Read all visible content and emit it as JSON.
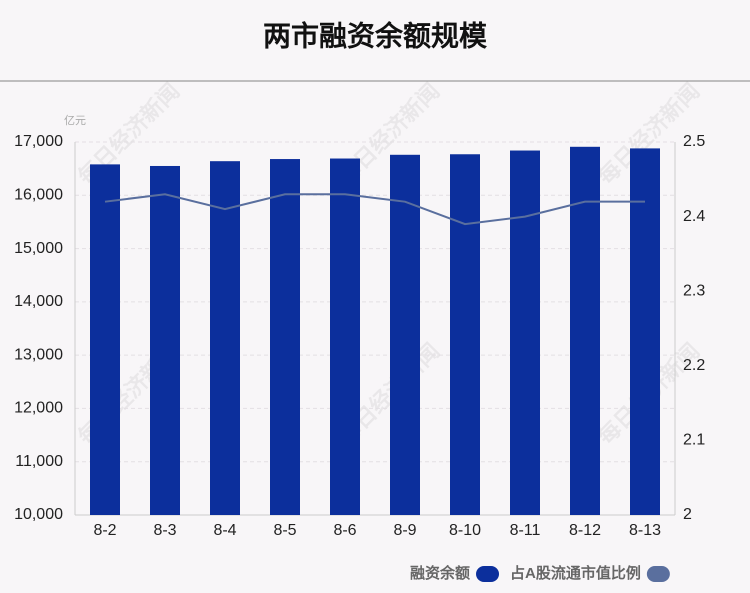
{
  "chart_data": {
    "type": "bar_line",
    "title": "两市融资余额规模",
    "y_unit": "亿元",
    "watermark": "每日经济新闻",
    "categories": [
      "8-2",
      "8-3",
      "8-4",
      "8-5",
      "8-6",
      "8-9",
      "8-10",
      "8-11",
      "8-12",
      "8-13"
    ],
    "series": [
      {
        "name": "融资余额",
        "type": "bar",
        "color": "#0c2f9c",
        "axis": "y",
        "values": [
          16580,
          16550,
          16640,
          16680,
          16690,
          16760,
          16770,
          16840,
          16910,
          16880
        ]
      },
      {
        "name": "占A股流通市值比例",
        "type": "line",
        "color": "#5a6f9e",
        "axis": "y2",
        "values": [
          2.42,
          2.43,
          2.41,
          2.43,
          2.43,
          2.42,
          2.39,
          2.4,
          2.42,
          2.42
        ]
      }
    ],
    "ylim": [
      10000,
      17000
    ],
    "yticks": [
      {
        "value": 10000,
        "label": "10,000"
      },
      {
        "value": 11000,
        "label": "11,000"
      },
      {
        "value": 12000,
        "label": "12,000"
      },
      {
        "value": 13000,
        "label": "13,000"
      },
      {
        "value": 14000,
        "label": "14,000"
      },
      {
        "value": 15000,
        "label": "15,000"
      },
      {
        "value": 16000,
        "label": "16,000"
      },
      {
        "value": 17000,
        "label": "17,000"
      }
    ],
    "y2lim": [
      2,
      2.5
    ],
    "y2ticks": [
      2,
      2.1,
      2.2,
      2.3,
      2.4,
      2.5
    ],
    "grid": true
  }
}
